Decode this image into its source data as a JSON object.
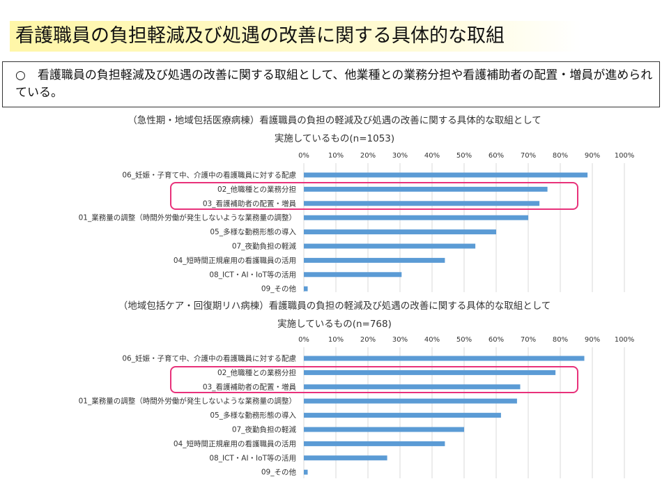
{
  "page": {
    "title": "看護職員の負担軽減及び処遇の改善に関する具体的な取組",
    "summary": "○　看護職員の負担軽減及び処遇の改善に関する取組として、他業種との業務分担や看護補助者の配置・増員が進められている。",
    "highlight_color": "#e8317a",
    "bar_color": "#5b9bd5"
  },
  "chart_data": [
    {
      "type": "bar",
      "orientation": "horizontal",
      "title_line1": "（急性期・地域包括医療病棟）看護職員の負担の軽減及び処遇の改善に関する具体的な取組として",
      "title_line2": "実施しているもの(n=1053)",
      "xlim": [
        0,
        100
      ],
      "x_ticks": [
        "0%",
        "10%",
        "20%",
        "30%",
        "40%",
        "50%",
        "60%",
        "70%",
        "80%",
        "90%",
        "100%"
      ],
      "grid": true,
      "categories": [
        "06_妊娠・子育て中、介護中の看護職員に対する配慮",
        "02_他職種との業務分担",
        "03_看護補助者の配置・増員",
        "01_業務量の調整（時間外労働が発生しないような業務量の調整）",
        "05_多様な勤務形態の導入",
        "07_夜勤負担の軽減",
        "04_短時間正規雇用の看護職員の活用",
        "08_ICT・AI・IoT等の活用",
        "09_その他"
      ],
      "values": [
        88.5,
        76,
        73.5,
        70,
        60,
        53.5,
        44,
        30.5,
        1.2
      ],
      "highlighted": [
        1,
        2
      ]
    },
    {
      "type": "bar",
      "orientation": "horizontal",
      "title_line1": "（地域包括ケア・回復期リハ病棟）看護職員の負担の軽減及び処遇の改善に関する具体的な取組として",
      "title_line2": "実施しているもの(n=768)",
      "xlim": [
        0,
        100
      ],
      "x_ticks": [
        "0%",
        "10%",
        "20%",
        "30%",
        "40%",
        "50%",
        "60%",
        "70%",
        "80%",
        "90%",
        "100%"
      ],
      "grid": true,
      "categories": [
        "06_妊娠・子育て中、介護中の看護職員に対する配慮",
        "02_他職種との業務分担",
        "03_看護補助者の配置・増員",
        "01_業務量の調整（時間外労働が発生しないような業務量の調整）",
        "05_多様な勤務形態の導入",
        "07_夜勤負担の軽減",
        "04_短時間正規雇用の看護職員の活用",
        "08_ICT・AI・IoT等の活用",
        "09_その他"
      ],
      "values": [
        87.5,
        78.5,
        67.5,
        66.5,
        61.5,
        50,
        44,
        26,
        1.2
      ],
      "highlighted": [
        1,
        2
      ]
    }
  ]
}
